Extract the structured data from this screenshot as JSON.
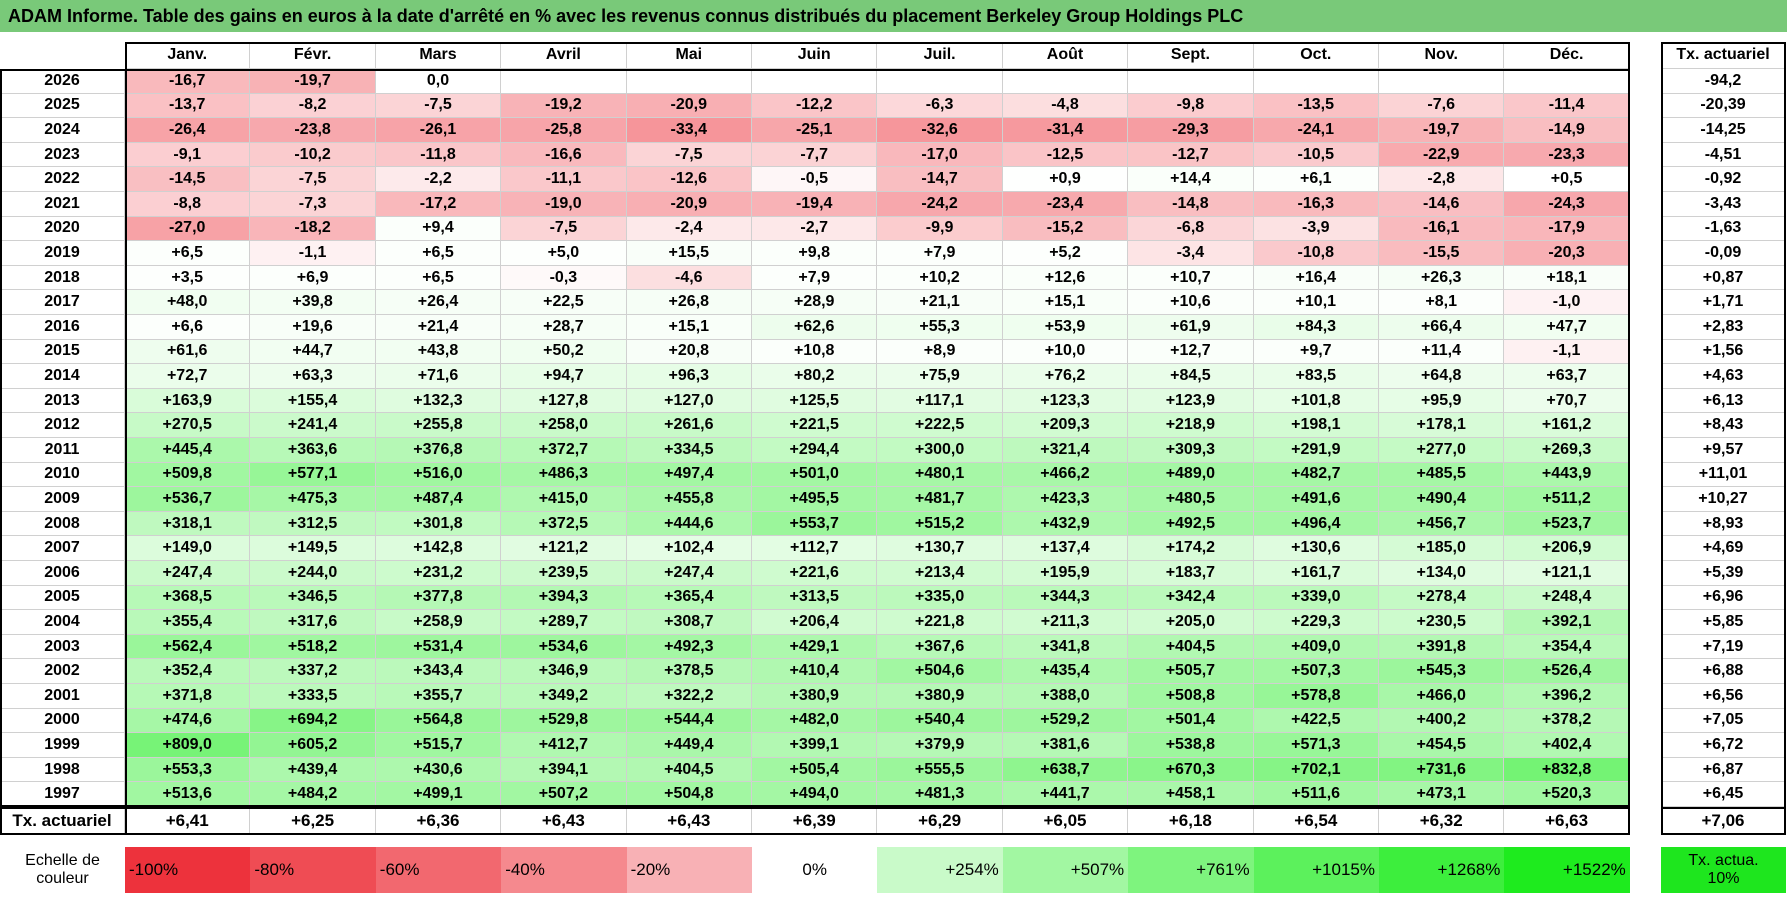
{
  "title": "ADAM Informe. Table des gains en euros à la date d'arrêté en % avec les revenus connus distribués du placement Berkeley Group Holdings PLC",
  "table": {
    "columns": [
      "Janv.",
      "Févr.",
      "Mars",
      "Avril",
      "Mai",
      "Juin",
      "Juil.",
      "Août",
      "Sept.",
      "Oct.",
      "Nov.",
      "Déc."
    ],
    "total_header": "Tx. actuariel",
    "rows": [
      {
        "year": "2026",
        "values": [
          "-16,7",
          "-19,7",
          "0,0",
          null,
          null,
          null,
          null,
          null,
          null,
          null,
          null,
          null
        ],
        "total": "-94,2"
      },
      {
        "year": "2025",
        "values": [
          "-13,7",
          "-8,2",
          "-7,5",
          "-19,2",
          "-20,9",
          "-12,2",
          "-6,3",
          "-4,8",
          "-9,8",
          "-13,5",
          "-7,6",
          "-11,4"
        ],
        "total": "-20,39"
      },
      {
        "year": "2024",
        "values": [
          "-26,4",
          "-23,8",
          "-26,1",
          "-25,8",
          "-33,4",
          "-25,1",
          "-32,6",
          "-31,4",
          "-29,3",
          "-24,1",
          "-19,7",
          "-14,9"
        ],
        "total": "-14,25"
      },
      {
        "year": "2023",
        "values": [
          "-9,1",
          "-10,2",
          "-11,8",
          "-16,6",
          "-7,5",
          "-7,7",
          "-17,0",
          "-12,5",
          "-12,7",
          "-10,5",
          "-22,9",
          "-23,3"
        ],
        "total": "-4,51"
      },
      {
        "year": "2022",
        "values": [
          "-14,5",
          "-7,5",
          "-2,2",
          "-11,1",
          "-12,6",
          "-0,5",
          "-14,7",
          "+0,9",
          "+14,4",
          "+6,1",
          "-2,8",
          "+0,5"
        ],
        "total": "-0,92"
      },
      {
        "year": "2021",
        "values": [
          "-8,8",
          "-7,3",
          "-17,2",
          "-19,0",
          "-20,9",
          "-19,4",
          "-24,2",
          "-23,4",
          "-14,8",
          "-16,3",
          "-14,6",
          "-24,3"
        ],
        "total": "-3,43"
      },
      {
        "year": "2020",
        "values": [
          "-27,0",
          "-18,2",
          "+9,4",
          "-7,5",
          "-2,4",
          "-2,7",
          "-9,9",
          "-15,2",
          "-6,8",
          "-3,9",
          "-16,1",
          "-17,9"
        ],
        "total": "-1,63"
      },
      {
        "year": "2019",
        "values": [
          "+6,5",
          "-1,1",
          "+6,5",
          "+5,0",
          "+15,5",
          "+9,8",
          "+7,9",
          "+5,2",
          "-3,4",
          "-10,8",
          "-15,5",
          "-20,3"
        ],
        "total": "-0,09"
      },
      {
        "year": "2018",
        "values": [
          "+3,5",
          "+6,9",
          "+6,5",
          "-0,3",
          "-4,6",
          "+7,9",
          "+10,2",
          "+12,6",
          "+10,7",
          "+16,4",
          "+26,3",
          "+18,1"
        ],
        "total": "+0,87"
      },
      {
        "year": "2017",
        "values": [
          "+48,0",
          "+39,8",
          "+26,4",
          "+22,5",
          "+26,8",
          "+28,9",
          "+21,1",
          "+15,1",
          "+10,6",
          "+10,1",
          "+8,1",
          "-1,0"
        ],
        "total": "+1,71"
      },
      {
        "year": "2016",
        "values": [
          "+6,6",
          "+19,6",
          "+21,4",
          "+28,7",
          "+15,1",
          "+62,6",
          "+55,3",
          "+53,9",
          "+61,9",
          "+84,3",
          "+66,4",
          "+47,7"
        ],
        "total": "+2,83"
      },
      {
        "year": "2015",
        "values": [
          "+61,6",
          "+44,7",
          "+43,8",
          "+50,2",
          "+20,8",
          "+10,8",
          "+8,9",
          "+10,0",
          "+12,7",
          "+9,7",
          "+11,4",
          "-1,1"
        ],
        "total": "+1,56"
      },
      {
        "year": "2014",
        "values": [
          "+72,7",
          "+63,3",
          "+71,6",
          "+94,7",
          "+96,3",
          "+80,2",
          "+75,9",
          "+76,2",
          "+84,5",
          "+83,5",
          "+64,8",
          "+63,7"
        ],
        "total": "+4,63"
      },
      {
        "year": "2013",
        "values": [
          "+163,9",
          "+155,4",
          "+132,3",
          "+127,8",
          "+127,0",
          "+125,5",
          "+117,1",
          "+123,3",
          "+123,9",
          "+101,8",
          "+95,9",
          "+70,7"
        ],
        "total": "+6,13"
      },
      {
        "year": "2012",
        "values": [
          "+270,5",
          "+241,4",
          "+255,8",
          "+258,0",
          "+261,6",
          "+221,5",
          "+222,5",
          "+209,3",
          "+218,9",
          "+198,1",
          "+178,1",
          "+161,2"
        ],
        "total": "+8,43"
      },
      {
        "year": "2011",
        "values": [
          "+445,4",
          "+363,6",
          "+376,8",
          "+372,7",
          "+334,5",
          "+294,4",
          "+300,0",
          "+321,4",
          "+309,3",
          "+291,9",
          "+277,0",
          "+269,3"
        ],
        "total": "+9,57"
      },
      {
        "year": "2010",
        "values": [
          "+509,8",
          "+577,1",
          "+516,0",
          "+486,3",
          "+497,4",
          "+501,0",
          "+480,1",
          "+466,2",
          "+489,0",
          "+482,7",
          "+485,5",
          "+443,9"
        ],
        "total": "+11,01"
      },
      {
        "year": "2009",
        "values": [
          "+536,7",
          "+475,3",
          "+487,4",
          "+415,0",
          "+455,8",
          "+495,5",
          "+481,7",
          "+423,3",
          "+480,5",
          "+491,6",
          "+490,4",
          "+511,2"
        ],
        "total": "+10,27"
      },
      {
        "year": "2008",
        "values": [
          "+318,1",
          "+312,5",
          "+301,8",
          "+372,5",
          "+444,6",
          "+553,7",
          "+515,2",
          "+432,9",
          "+492,5",
          "+496,4",
          "+456,7",
          "+523,7"
        ],
        "total": "+8,93"
      },
      {
        "year": "2007",
        "values": [
          "+149,0",
          "+149,5",
          "+142,8",
          "+121,2",
          "+102,4",
          "+112,7",
          "+130,7",
          "+137,4",
          "+174,2",
          "+130,6",
          "+185,0",
          "+206,9"
        ],
        "total": "+4,69"
      },
      {
        "year": "2006",
        "values": [
          "+247,4",
          "+244,0",
          "+231,2",
          "+239,5",
          "+247,4",
          "+221,6",
          "+213,4",
          "+195,9",
          "+183,7",
          "+161,7",
          "+134,0",
          "+121,1"
        ],
        "total": "+5,39"
      },
      {
        "year": "2005",
        "values": [
          "+368,5",
          "+346,5",
          "+377,8",
          "+394,3",
          "+365,4",
          "+313,5",
          "+335,0",
          "+344,3",
          "+342,4",
          "+339,0",
          "+278,4",
          "+248,4"
        ],
        "total": "+6,96"
      },
      {
        "year": "2004",
        "values": [
          "+355,4",
          "+317,6",
          "+258,9",
          "+289,7",
          "+308,7",
          "+206,4",
          "+221,8",
          "+211,3",
          "+205,0",
          "+229,3",
          "+230,5",
          "+392,1"
        ],
        "total": "+5,85"
      },
      {
        "year": "2003",
        "values": [
          "+562,4",
          "+518,2",
          "+531,4",
          "+534,6",
          "+492,3",
          "+429,1",
          "+367,6",
          "+341,8",
          "+404,5",
          "+409,0",
          "+391,8",
          "+354,4"
        ],
        "total": "+7,19"
      },
      {
        "year": "2002",
        "values": [
          "+352,4",
          "+337,2",
          "+343,4",
          "+346,9",
          "+378,5",
          "+410,4",
          "+504,6",
          "+435,4",
          "+505,7",
          "+507,3",
          "+545,3",
          "+526,4"
        ],
        "total": "+6,88"
      },
      {
        "year": "2001",
        "values": [
          "+371,8",
          "+333,5",
          "+355,7",
          "+349,2",
          "+322,2",
          "+380,9",
          "+380,9",
          "+388,0",
          "+508,8",
          "+578,8",
          "+466,0",
          "+396,2"
        ],
        "total": "+6,56"
      },
      {
        "year": "2000",
        "values": [
          "+474,6",
          "+694,2",
          "+564,8",
          "+529,8",
          "+544,4",
          "+482,0",
          "+540,4",
          "+529,2",
          "+501,4",
          "+422,5",
          "+400,2",
          "+378,2"
        ],
        "total": "+7,05"
      },
      {
        "year": "1999",
        "values": [
          "+809,0",
          "+605,2",
          "+515,7",
          "+412,7",
          "+449,4",
          "+399,1",
          "+379,9",
          "+381,6",
          "+538,8",
          "+571,3",
          "+454,5",
          "+402,4"
        ],
        "total": "+6,72"
      },
      {
        "year": "1998",
        "values": [
          "+553,3",
          "+439,4",
          "+430,6",
          "+394,1",
          "+404,5",
          "+505,4",
          "+555,5",
          "+638,7",
          "+670,3",
          "+702,1",
          "+731,6",
          "+832,8"
        ],
        "total": "+6,87"
      },
      {
        "year": "1997",
        "values": [
          "+513,6",
          "+484,2",
          "+499,1",
          "+507,2",
          "+504,8",
          "+494,0",
          "+481,3",
          "+441,7",
          "+458,1",
          "+511,6",
          "+473,1",
          "+520,3"
        ],
        "total": "+6,45"
      }
    ],
    "footer": {
      "label": "Tx. actuariel",
      "values": [
        "+6,41",
        "+6,25",
        "+6,36",
        "+6,43",
        "+6,43",
        "+6,39",
        "+6,29",
        "+6,05",
        "+6,18",
        "+6,54",
        "+6,32",
        "+6,63"
      ],
      "total": "+7,06"
    }
  },
  "legend": {
    "label": "Echelle de couleur",
    "items": [
      "-100%",
      "-80%",
      "-60%",
      "-40%",
      "-20%",
      "0%",
      "+254%",
      "+507%",
      "+761%",
      "+1015%",
      "+1268%",
      "+1522%"
    ],
    "total": "Tx. actua. 10%"
  }
}
